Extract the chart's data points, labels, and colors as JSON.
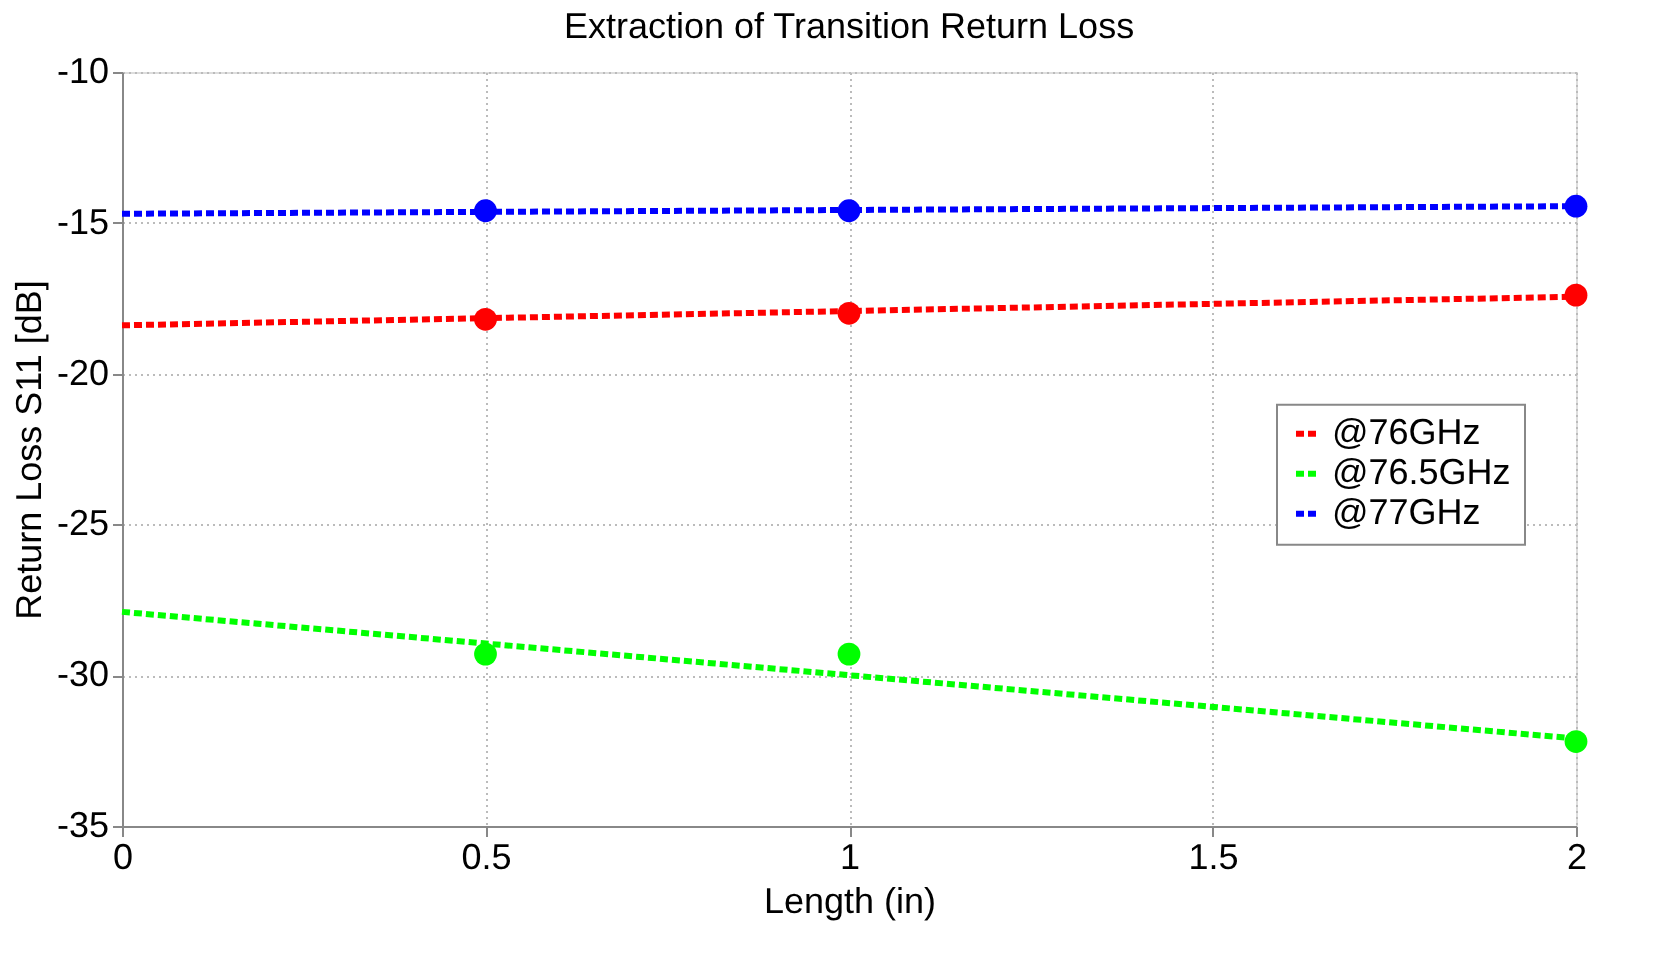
{
  "chart_data": {
    "type": "line",
    "title": "Extraction of Transition Return Loss",
    "xlabel": "Length (in)",
    "ylabel": "Return Loss S11 [dB]",
    "xlim": [
      0,
      2
    ],
    "xticks": [
      0,
      0.5,
      1,
      1.5,
      2
    ],
    "ylim": [
      -35,
      -10
    ],
    "yticks": [
      -35,
      -30,
      -25,
      -20,
      -15,
      -10
    ],
    "grid": true,
    "legend": "right",
    "line_style": "dashed",
    "marker": "none",
    "series": [
      {
        "name": "@76GHz",
        "type": "line",
        "color": "#ff0000",
        "x": [
          0,
          2
        ],
        "values": [
          -18.4,
          -17.45
        ]
      },
      {
        "name": "@76.5GHz",
        "type": "line",
        "color": "#00ff00",
        "x": [
          0,
          2
        ],
        "values": [
          -27.9,
          -32.1
        ]
      },
      {
        "name": "@77GHz",
        "type": "line",
        "color": "#0000ff",
        "x": [
          0,
          2
        ],
        "values": [
          -14.7,
          -14.45
        ]
      },
      {
        "type": "scatter",
        "marker": "circle",
        "color": "#ff0000",
        "x": [
          0.5,
          1,
          2
        ],
        "values": [
          -18.2,
          -18.0,
          -17.4
        ]
      },
      {
        "type": "scatter",
        "marker": "circle",
        "color": "#00ff00",
        "x": [
          0.5,
          1,
          2
        ],
        "values": [
          -29.3,
          -29.3,
          -32.2
        ]
      },
      {
        "type": "scatter",
        "marker": "circle",
        "color": "#0000ff",
        "x": [
          0.5,
          1,
          2
        ],
        "values": [
          -14.6,
          -14.6,
          -14.45
        ]
      }
    ]
  }
}
